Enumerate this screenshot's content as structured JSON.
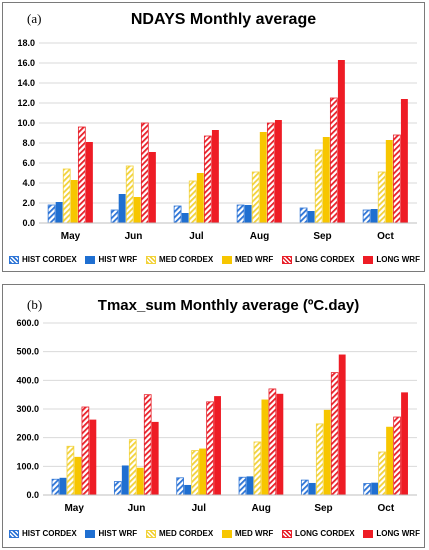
{
  "series_styles": [
    {
      "name": "HIST CORDEX",
      "color": "#2e75d6",
      "pattern": "hatch"
    },
    {
      "name": "HIST WRF",
      "color": "#1f6fd1",
      "pattern": "solid"
    },
    {
      "name": "MED CORDEX",
      "color": "#f2d23a",
      "pattern": "hatch"
    },
    {
      "name": "MED WRF",
      "color": "#f7c600",
      "pattern": "solid"
    },
    {
      "name": "LONG CORDEX",
      "color": "#e8202a",
      "pattern": "hatch"
    },
    {
      "name": "LONG WRF",
      "color": "#ee1c25",
      "pattern": "solid"
    }
  ],
  "chart_data": [
    {
      "panel_label": "(a)",
      "type": "bar",
      "title": "NDAYS Monthly average",
      "categories": [
        "May",
        "Jun",
        "Jul",
        "Aug",
        "Sep",
        "Oct"
      ],
      "ylim": [
        0,
        18
      ],
      "yticks": [
        0,
        2,
        4,
        6,
        8,
        10,
        12,
        14,
        16,
        18
      ],
      "tick_decimals": 1,
      "grid": true,
      "legend": "bottom",
      "series": [
        {
          "name": "HIST CORDEX",
          "values": [
            1.8,
            1.3,
            1.7,
            1.8,
            1.5,
            1.3
          ]
        },
        {
          "name": "HIST WRF",
          "values": [
            2.1,
            2.9,
            1.0,
            1.8,
            1.2,
            1.4
          ]
        },
        {
          "name": "MED CORDEX",
          "values": [
            5.4,
            5.7,
            4.2,
            5.1,
            7.3,
            5.1
          ]
        },
        {
          "name": "MED WRF",
          "values": [
            4.3,
            2.6,
            5.0,
            9.1,
            8.6,
            8.3
          ]
        },
        {
          "name": "LONG CORDEX",
          "values": [
            9.6,
            10.0,
            8.7,
            10.0,
            12.5,
            8.8
          ]
        },
        {
          "name": "LONG WRF",
          "values": [
            8.1,
            7.1,
            9.3,
            10.3,
            16.3,
            12.4
          ]
        }
      ]
    },
    {
      "panel_label": "(b)",
      "type": "bar",
      "title": "Tmax_sum Monthly average (ºC.day)",
      "categories": [
        "May",
        "Jun",
        "Jul",
        "Aug",
        "Sep",
        "Oct"
      ],
      "ylim": [
        0,
        600
      ],
      "yticks": [
        0,
        100,
        200,
        300,
        400,
        500,
        600
      ],
      "tick_decimals": 1,
      "grid": true,
      "legend": "bottom",
      "series": [
        {
          "name": "HIST CORDEX",
          "values": [
            55,
            47,
            60,
            62,
            52,
            40
          ]
        },
        {
          "name": "HIST WRF",
          "values": [
            60,
            103,
            35,
            65,
            42,
            43
          ]
        },
        {
          "name": "MED CORDEX",
          "values": [
            170,
            193,
            155,
            185,
            248,
            150
          ]
        },
        {
          "name": "MED WRF",
          "values": [
            133,
            95,
            162,
            333,
            297,
            238
          ]
        },
        {
          "name": "LONG CORDEX",
          "values": [
            307,
            350,
            325,
            370,
            427,
            272
          ]
        },
        {
          "name": "LONG WRF",
          "values": [
            263,
            255,
            345,
            353,
            490,
            358
          ]
        }
      ]
    }
  ]
}
